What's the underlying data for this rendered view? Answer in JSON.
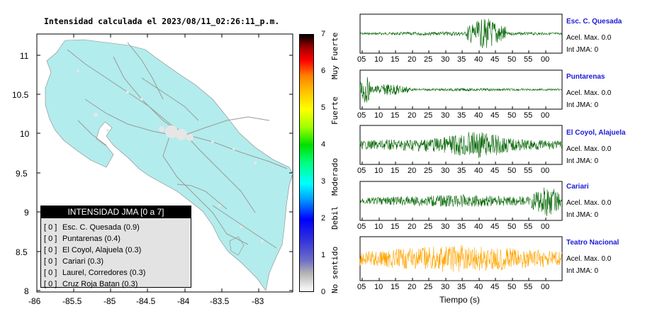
{
  "map": {
    "title": "Intensidad calculada el 2023/08/11_02:26:11_p.m.",
    "y_ticks": [
      "11",
      "10.5",
      "10",
      "9.5",
      "9",
      "8.5",
      "8"
    ],
    "x_ticks": [
      "-86",
      "-85.5",
      "-85",
      "-84.5",
      "-84",
      "-83.5",
      "-83"
    ]
  },
  "legend": {
    "header": "INTENSIDAD JMA [0 a 7]",
    "rows": [
      {
        "box": "[ 0 ]",
        "label": "Esc. C. Quesada (0.9)"
      },
      {
        "box": "[ 0 ]",
        "label": "Puntarenas (0.4)"
      },
      {
        "box": "[ 0 ]",
        "label": "El Coyol, Alajuela (0.3)"
      },
      {
        "box": "[ 0 ]",
        "label": "Cariari (0.3)"
      },
      {
        "box": "[ 0 ]",
        "label": "Laurel, Corredores (0.3)"
      },
      {
        "box": "[ 0 ]",
        "label": "Cruz Roja Batan (0.3)"
      }
    ]
  },
  "colorbar": {
    "ticks": [
      "7",
      "6",
      "5",
      "4",
      "3",
      "2",
      "1",
      "0"
    ],
    "categories": [
      "Muy Fuerte",
      "Fuerte",
      "Moderado",
      "Debil",
      "No sentido"
    ]
  },
  "waveforms": {
    "x_ticks": [
      "05",
      "10",
      "15",
      "20",
      "25",
      "30",
      "35",
      "40",
      "45",
      "50",
      "55",
      "00"
    ],
    "xlabel": "Tiempo (s)",
    "stations": [
      {
        "name": "Esc. C. Quesada",
        "accel": "Acel. Max. 0.0",
        "int": "Int JMA: 0",
        "color": "#006400"
      },
      {
        "name": "Puntarenas",
        "accel": "Acel. Max. 0.0",
        "int": "Int JMA: 0",
        "color": "#006400"
      },
      {
        "name": "El Coyol, Alajuela",
        "accel": "Acel. Max. 0.0",
        "int": "Int JMA: 0",
        "color": "#006400"
      },
      {
        "name": "Cariari",
        "accel": "Acel. Max. 0.0",
        "int": "Int JMA: 0",
        "color": "#006400"
      },
      {
        "name": "Teatro Nacional",
        "accel": "Acel. Max. 0.0",
        "int": "Int JMA: 0",
        "color": "#ffa500"
      }
    ]
  }
}
